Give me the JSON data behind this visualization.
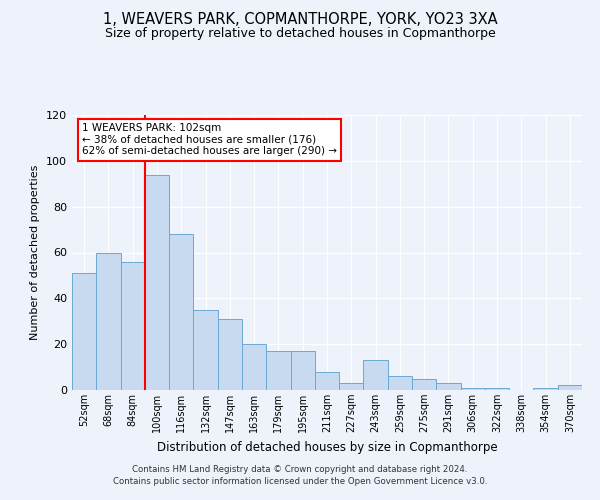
{
  "title": "1, WEAVERS PARK, COPMANTHORPE, YORK, YO23 3XA",
  "subtitle": "Size of property relative to detached houses in Copmanthorpe",
  "xlabel": "Distribution of detached houses by size in Copmanthorpe",
  "ylabel": "Number of detached properties",
  "bar_labels": [
    "52sqm",
    "68sqm",
    "84sqm",
    "100sqm",
    "116sqm",
    "132sqm",
    "147sqm",
    "163sqm",
    "179sqm",
    "195sqm",
    "211sqm",
    "227sqm",
    "243sqm",
    "259sqm",
    "275sqm",
    "291sqm",
    "306sqm",
    "322sqm",
    "338sqm",
    "354sqm",
    "370sqm"
  ],
  "bar_values": [
    51,
    60,
    56,
    94,
    68,
    35,
    31,
    20,
    17,
    17,
    8,
    3,
    13,
    6,
    5,
    3,
    1,
    1,
    0,
    1,
    2
  ],
  "bar_color": "#c8daf0",
  "bar_edge_color": "#6aaad4",
  "vline_color": "red",
  "vline_pos": 2.5,
  "ylim": [
    0,
    120
  ],
  "yticks": [
    0,
    20,
    40,
    60,
    80,
    100,
    120
  ],
  "annotation_title": "1 WEAVERS PARK: 102sqm",
  "annotation_line1": "← 38% of detached houses are smaller (176)",
  "annotation_line2": "62% of semi-detached houses are larger (290) →",
  "annotation_box_color": "white",
  "annotation_box_edge_color": "red",
  "footer1": "Contains HM Land Registry data © Crown copyright and database right 2024.",
  "footer2": "Contains public sector information licensed under the Open Government Licence v3.0.",
  "bg_color": "#eef2fb",
  "grid_color": "white",
  "title_fontsize": 10.5,
  "subtitle_fontsize": 9
}
